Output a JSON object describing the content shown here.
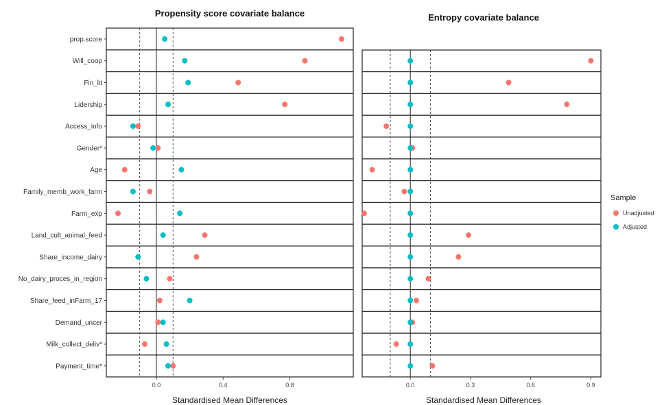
{
  "chart_data": [
    {
      "type": "scatter",
      "title": "Propensity score covariate balance",
      "xlabel": "Standardised Mean Differences",
      "xlim": [
        -0.3,
        1.18
      ],
      "xticks": [
        0.0,
        0.4,
        0.8
      ],
      "tick_labels": [
        "0.0",
        "0.4",
        "0.8"
      ],
      "reference_lines": {
        "solid": 0.0,
        "dashed": [
          -0.1,
          0.1
        ]
      },
      "categories": [
        "prop.score",
        "Will_coop",
        "Fin_lit",
        "Lidership",
        "Access_info",
        "Gender*",
        "Age",
        "Family_memb_work_farm",
        "Farm_exp",
        "Land_cult_animal_feed",
        "Share_income_dairy",
        "No_dairy_proces_in_region",
        "Share_feed_inFarm_17",
        "Demand_uncer",
        "Milk_collect_deliv*",
        "Payment_time*"
      ],
      "series": [
        {
          "name": "Unadjusted",
          "color": "#F8766D",
          "values": [
            1.11,
            0.89,
            0.49,
            0.77,
            -0.11,
            0.01,
            -0.19,
            -0.04,
            -0.23,
            0.29,
            0.24,
            0.08,
            0.02,
            0.01,
            -0.07,
            0.1
          ]
        },
        {
          "name": "Adjusted",
          "color": "#00BFC4",
          "values": [
            0.05,
            0.17,
            0.19,
            0.07,
            -0.14,
            -0.02,
            0.15,
            -0.14,
            0.14,
            0.04,
            -0.11,
            -0.06,
            0.2,
            0.04,
            0.06,
            0.07
          ]
        }
      ],
      "grid": false
    },
    {
      "type": "scatter",
      "title": "Entropy covariate balance",
      "xlabel": "Standardised Mean Differences",
      "xlim": [
        -0.24,
        0.95
      ],
      "xticks": [
        0.0,
        0.3,
        0.6,
        0.9
      ],
      "tick_labels": [
        "0.0",
        "0.3",
        "0.6",
        "0.9"
      ],
      "reference_lines": {
        "solid": 0.0,
        "dashed": [
          -0.1,
          0.1
        ]
      },
      "categories": [
        "Will_coop",
        "Fin_lit",
        "Lidership",
        "Access_info",
        "Gender*",
        "Age",
        "Family_memb_work_farm",
        "Farm_exp",
        "Land_cult_animal_feed",
        "Share_income_dairy",
        "No_dairy_proces_in_region",
        "Share_feed_inFarm_17",
        "Demand_uncer",
        "Milk_collect_deliv*",
        "Payment_time*"
      ],
      "series": [
        {
          "name": "Unadjusted",
          "color": "#F8766D",
          "values": [
            0.9,
            0.49,
            0.78,
            -0.12,
            0.01,
            -0.19,
            -0.03,
            -0.23,
            0.29,
            0.24,
            0.09,
            0.03,
            0.01,
            -0.07,
            0.11
          ]
        },
        {
          "name": "Adjusted",
          "color": "#00BFC4",
          "values": [
            0.0,
            0.0,
            0.0,
            0.0,
            0.0,
            0.0,
            0.0,
            0.0,
            0.0,
            0.0,
            0.0,
            0.0,
            0.0,
            0.0,
            0.0
          ]
        }
      ],
      "grid": false
    }
  ],
  "legend": {
    "title": "Sample",
    "placement": "right",
    "items": [
      {
        "label": "Unadjusted",
        "color": "#F8766D"
      },
      {
        "label": "Adjusted",
        "color": "#00BFC4"
      }
    ]
  }
}
